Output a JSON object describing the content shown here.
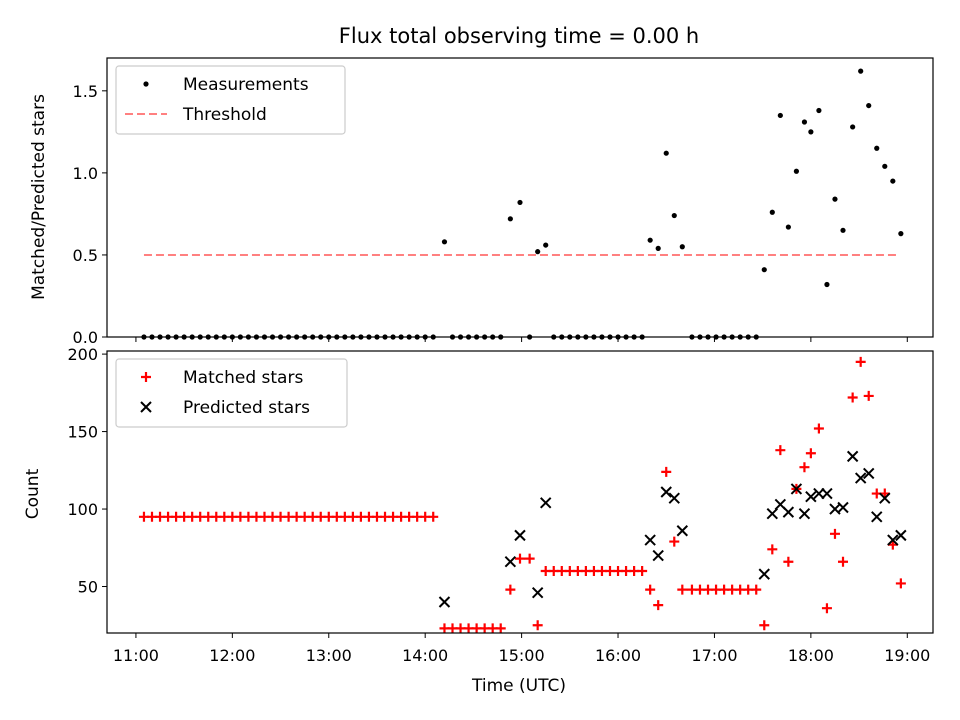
{
  "figure": {
    "title": "Flux total observing time = 0.00 h",
    "xlabel": "Time (UTC)"
  },
  "chart_data": [
    {
      "type": "scatter",
      "title": "Flux total observing time = 0.00 h",
      "ylabel": "Matched/Predicted stars",
      "xlim": [
        "10:42",
        "19:16"
      ],
      "ylim": [
        0,
        1.7
      ],
      "yticks": [
        "0.0",
        "0.5",
        "1.0",
        "1.5"
      ],
      "legend_position": "top-left",
      "legend": [
        {
          "label": "Measurements",
          "marker": "dot",
          "color": "#000000"
        },
        {
          "label": "Threshold",
          "marker": "dashed-line",
          "color": "#ff8080"
        }
      ],
      "threshold": {
        "name": "Threshold",
        "y": 0.5,
        "x": [
          "11:05",
          "18:55"
        ],
        "color": "#ff8080"
      },
      "series": [
        {
          "name": "Measurements",
          "color": "#000000",
          "points": [
            [
              "11:05",
              0
            ],
            [
              "11:10",
              0
            ],
            [
              "11:15",
              0
            ],
            [
              "11:20",
              0
            ],
            [
              "11:25",
              0
            ],
            [
              "11:30",
              0
            ],
            [
              "11:35",
              0
            ],
            [
              "11:40",
              0
            ],
            [
              "11:45",
              0
            ],
            [
              "11:50",
              0
            ],
            [
              "11:55",
              0
            ],
            [
              "12:00",
              0
            ],
            [
              "12:05",
              0
            ],
            [
              "12:10",
              0
            ],
            [
              "12:15",
              0
            ],
            [
              "12:20",
              0
            ],
            [
              "12:25",
              0
            ],
            [
              "12:30",
              0
            ],
            [
              "12:35",
              0
            ],
            [
              "12:40",
              0
            ],
            [
              "12:45",
              0
            ],
            [
              "12:50",
              0
            ],
            [
              "12:55",
              0
            ],
            [
              "13:00",
              0
            ],
            [
              "13:05",
              0
            ],
            [
              "13:10",
              0
            ],
            [
              "13:15",
              0
            ],
            [
              "13:20",
              0
            ],
            [
              "13:25",
              0
            ],
            [
              "13:30",
              0
            ],
            [
              "13:35",
              0
            ],
            [
              "13:40",
              0
            ],
            [
              "13:45",
              0
            ],
            [
              "13:50",
              0
            ],
            [
              "13:55",
              0
            ],
            [
              "14:00",
              0
            ],
            [
              "14:05",
              0
            ],
            [
              "14:12",
              0.58
            ],
            [
              "14:17",
              0
            ],
            [
              "14:22",
              0
            ],
            [
              "14:27",
              0
            ],
            [
              "14:32",
              0
            ],
            [
              "14:37",
              0
            ],
            [
              "14:42",
              0
            ],
            [
              "14:47",
              0
            ],
            [
              "14:53",
              0.72
            ],
            [
              "14:59",
              0.82
            ],
            [
              "15:05",
              0
            ],
            [
              "15:10",
              0.52
            ],
            [
              "15:15",
              0.56
            ],
            [
              "15:20",
              0
            ],
            [
              "15:25",
              0
            ],
            [
              "15:30",
              0
            ],
            [
              "15:35",
              0
            ],
            [
              "15:40",
              0
            ],
            [
              "15:45",
              0
            ],
            [
              "15:50",
              0
            ],
            [
              "15:55",
              0
            ],
            [
              "16:00",
              0
            ],
            [
              "16:05",
              0
            ],
            [
              "16:10",
              0
            ],
            [
              "16:15",
              0
            ],
            [
              "16:20",
              0.59
            ],
            [
              "16:25",
              0.54
            ],
            [
              "16:30",
              1.12
            ],
            [
              "16:35",
              0.74
            ],
            [
              "16:40",
              0.55
            ],
            [
              "16:46",
              0
            ],
            [
              "16:51",
              0
            ],
            [
              "16:56",
              0
            ],
            [
              "17:01",
              0
            ],
            [
              "17:06",
              0
            ],
            [
              "17:11",
              0
            ],
            [
              "17:16",
              0
            ],
            [
              "17:21",
              0
            ],
            [
              "17:26",
              0
            ],
            [
              "17:31",
              0.41
            ],
            [
              "17:36",
              0.76
            ],
            [
              "17:41",
              1.35
            ],
            [
              "17:46",
              0.67
            ],
            [
              "17:51",
              1.01
            ],
            [
              "17:56",
              1.31
            ],
            [
              "18:00",
              1.25
            ],
            [
              "18:05",
              1.38
            ],
            [
              "18:10",
              0.32
            ],
            [
              "18:15",
              0.84
            ],
            [
              "18:20",
              0.65
            ],
            [
              "18:26",
              1.28
            ],
            [
              "18:31",
              1.62
            ],
            [
              "18:36",
              1.41
            ],
            [
              "18:41",
              1.15
            ],
            [
              "18:46",
              1.04
            ],
            [
              "18:51",
              0.95
            ],
            [
              "18:56",
              0.63
            ]
          ]
        }
      ]
    },
    {
      "type": "scatter",
      "ylabel": "Count",
      "xlabel": "Time (UTC)",
      "xlim": [
        "10:42",
        "19:16"
      ],
      "ylim": [
        20,
        202
      ],
      "yticks": [
        "50",
        "100",
        "150",
        "200"
      ],
      "xticks": [
        "11:00",
        "12:00",
        "13:00",
        "14:00",
        "15:00",
        "16:00",
        "17:00",
        "18:00",
        "19:00"
      ],
      "legend_position": "top-left",
      "legend": [
        {
          "label": "Matched stars",
          "marker": "plus",
          "color": "#ff0000"
        },
        {
          "label": "Predicted stars",
          "marker": "x",
          "color": "#000000"
        }
      ],
      "series": [
        {
          "name": "Matched stars",
          "color": "#ff0000",
          "marker": "plus",
          "points": [
            [
              "11:05",
              95
            ],
            [
              "11:10",
              95
            ],
            [
              "11:15",
              95
            ],
            [
              "11:20",
              95
            ],
            [
              "11:25",
              95
            ],
            [
              "11:30",
              95
            ],
            [
              "11:35",
              95
            ],
            [
              "11:40",
              95
            ],
            [
              "11:45",
              95
            ],
            [
              "11:50",
              95
            ],
            [
              "11:55",
              95
            ],
            [
              "12:00",
              95
            ],
            [
              "12:05",
              95
            ],
            [
              "12:10",
              95
            ],
            [
              "12:15",
              95
            ],
            [
              "12:20",
              95
            ],
            [
              "12:25",
              95
            ],
            [
              "12:30",
              95
            ],
            [
              "12:35",
              95
            ],
            [
              "12:40",
              95
            ],
            [
              "12:45",
              95
            ],
            [
              "12:50",
              95
            ],
            [
              "12:55",
              95
            ],
            [
              "13:00",
              95
            ],
            [
              "13:05",
              95
            ],
            [
              "13:10",
              95
            ],
            [
              "13:15",
              95
            ],
            [
              "13:20",
              95
            ],
            [
              "13:25",
              95
            ],
            [
              "13:30",
              95
            ],
            [
              "13:35",
              95
            ],
            [
              "13:40",
              95
            ],
            [
              "13:45",
              95
            ],
            [
              "13:50",
              95
            ],
            [
              "13:55",
              95
            ],
            [
              "14:00",
              95
            ],
            [
              "14:05",
              95
            ],
            [
              "14:12",
              23
            ],
            [
              "14:17",
              23
            ],
            [
              "14:22",
              23
            ],
            [
              "14:27",
              23
            ],
            [
              "14:32",
              23
            ],
            [
              "14:37",
              23
            ],
            [
              "14:42",
              23
            ],
            [
              "14:47",
              23
            ],
            [
              "14:53",
              48
            ],
            [
              "14:59",
              68
            ],
            [
              "15:05",
              68
            ],
            [
              "15:10",
              25
            ],
            [
              "15:15",
              60
            ],
            [
              "15:20",
              60
            ],
            [
              "15:25",
              60
            ],
            [
              "15:30",
              60
            ],
            [
              "15:35",
              60
            ],
            [
              "15:40",
              60
            ],
            [
              "15:45",
              60
            ],
            [
              "15:50",
              60
            ],
            [
              "15:55",
              60
            ],
            [
              "16:00",
              60
            ],
            [
              "16:05",
              60
            ],
            [
              "16:10",
              60
            ],
            [
              "16:15",
              60
            ],
            [
              "16:20",
              48
            ],
            [
              "16:25",
              38
            ],
            [
              "16:30",
              124
            ],
            [
              "16:35",
              79
            ],
            [
              "16:40",
              48
            ],
            [
              "16:46",
              48
            ],
            [
              "16:51",
              48
            ],
            [
              "16:56",
              48
            ],
            [
              "17:01",
              48
            ],
            [
              "17:06",
              48
            ],
            [
              "17:11",
              48
            ],
            [
              "17:16",
              48
            ],
            [
              "17:21",
              48
            ],
            [
              "17:26",
              48
            ],
            [
              "17:31",
              25
            ],
            [
              "17:36",
              74
            ],
            [
              "17:41",
              138
            ],
            [
              "17:46",
              66
            ],
            [
              "17:51",
              113
            ],
            [
              "17:56",
              127
            ],
            [
              "18:00",
              136
            ],
            [
              "18:05",
              152
            ],
            [
              "18:10",
              36
            ],
            [
              "18:15",
              84
            ],
            [
              "18:20",
              66
            ],
            [
              "18:26",
              172
            ],
            [
              "18:31",
              195
            ],
            [
              "18:36",
              173
            ],
            [
              "18:41",
              110
            ],
            [
              "18:46",
              110
            ],
            [
              "18:51",
              77
            ],
            [
              "18:56",
              52
            ]
          ]
        },
        {
          "name": "Predicted stars",
          "color": "#000000",
          "marker": "x",
          "points": [
            [
              "14:12",
              40
            ],
            [
              "14:53",
              66
            ],
            [
              "14:59",
              83
            ],
            [
              "15:10",
              46
            ],
            [
              "15:15",
              104
            ],
            [
              "16:20",
              80
            ],
            [
              "16:25",
              70
            ],
            [
              "16:30",
              111
            ],
            [
              "16:35",
              107
            ],
            [
              "16:40",
              86
            ],
            [
              "17:31",
              58
            ],
            [
              "17:36",
              97
            ],
            [
              "17:41",
              103
            ],
            [
              "17:46",
              98
            ],
            [
              "17:51",
              113
            ],
            [
              "17:56",
              97
            ],
            [
              "18:00",
              108
            ],
            [
              "18:05",
              110
            ],
            [
              "18:10",
              110
            ],
            [
              "18:15",
              100
            ],
            [
              "18:20",
              101
            ],
            [
              "18:26",
              134
            ],
            [
              "18:31",
              120
            ],
            [
              "18:36",
              123
            ],
            [
              "18:41",
              95
            ],
            [
              "18:46",
              107
            ],
            [
              "18:51",
              80
            ],
            [
              "18:56",
              83
            ]
          ]
        }
      ]
    }
  ]
}
